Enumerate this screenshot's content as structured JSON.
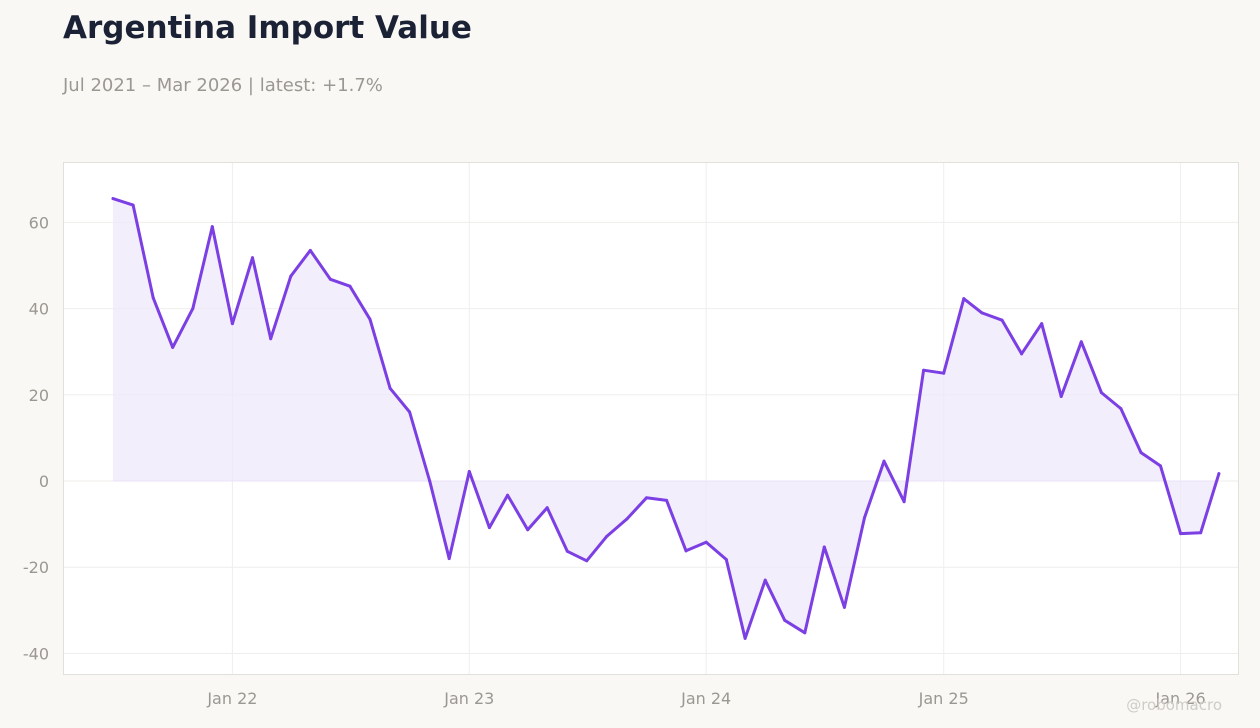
{
  "header": {
    "title": "Argentina Import Value",
    "subtitle": "Jul 2021 – Mar 2026 | latest: +1.7%"
  },
  "watermark": "@robomacro",
  "colors": {
    "line": "#7b3fe4",
    "fill": "#efe8fb",
    "background": "#f9f8f5",
    "plot_background": "#ffffff",
    "grid": "#f0eeeb",
    "zero_line": "#e9e1f8"
  },
  "chart_data": {
    "type": "area",
    "title": "Argentina Import Value",
    "subtitle": "Jul 2021 – Mar 2026 | latest: +1.7%",
    "xlabel": "",
    "ylabel": "",
    "ylim": [
      -45,
      74
    ],
    "xlim": [
      "2021-04-15",
      "2026-04-01"
    ],
    "grid": true,
    "legend": "none",
    "yticks": [
      -40,
      -20,
      0,
      20,
      40,
      60
    ],
    "xticks": [
      {
        "date": "2022-01-01",
        "label": "Jan 22"
      },
      {
        "date": "2023-01-01",
        "label": "Jan 23"
      },
      {
        "date": "2024-01-01",
        "label": "Jan 24"
      },
      {
        "date": "2025-01-01",
        "label": "Jan 25"
      },
      {
        "date": "2026-01-01",
        "label": "Jan 26"
      }
    ],
    "x": [
      "2021-07-01",
      "2021-08-01",
      "2021-09-01",
      "2021-10-01",
      "2021-11-01",
      "2021-12-01",
      "2022-01-01",
      "2022-02-01",
      "2022-03-01",
      "2022-04-01",
      "2022-05-01",
      "2022-06-01",
      "2022-07-01",
      "2022-08-01",
      "2022-09-01",
      "2022-10-01",
      "2022-11-01",
      "2022-12-01",
      "2023-01-01",
      "2023-02-01",
      "2023-03-01",
      "2023-04-01",
      "2023-05-01",
      "2023-06-01",
      "2023-07-01",
      "2023-08-01",
      "2023-09-01",
      "2023-10-01",
      "2023-11-01",
      "2023-12-01",
      "2024-01-01",
      "2024-02-01",
      "2024-03-01",
      "2024-04-01",
      "2024-05-01",
      "2024-06-01",
      "2024-07-01",
      "2024-08-01",
      "2024-09-01",
      "2024-10-01",
      "2024-11-01",
      "2024-12-01",
      "2025-01-01",
      "2025-02-01",
      "2025-03-01",
      "2025-04-01",
      "2025-05-01",
      "2025-06-01",
      "2025-07-01",
      "2025-08-01",
      "2025-09-01",
      "2025-10-01",
      "2025-11-01",
      "2025-12-01",
      "2026-01-01",
      "2026-02-01",
      "2026-03-01"
    ],
    "series": [
      {
        "values": [
          65.5,
          64.0,
          42.5,
          31.0,
          40.0,
          59.0,
          36.5,
          51.8,
          33.0,
          47.5,
          53.5,
          46.8,
          45.2,
          37.5,
          21.5,
          16.0,
          0.0,
          -18.0,
          2.2,
          -10.8,
          -3.3,
          -11.3,
          -6.2,
          -16.3,
          -18.5,
          -12.8,
          -8.8,
          -3.9,
          -4.5,
          -16.2,
          -14.2,
          -18.2,
          -36.5,
          -23.0,
          -32.3,
          -35.2,
          -15.3,
          -29.3,
          -8.5,
          4.6,
          -4.8,
          25.7,
          25.0,
          42.3,
          39.0,
          37.3,
          29.5,
          36.5,
          19.6,
          32.3,
          20.5,
          16.8,
          6.6,
          3.5,
          -12.2,
          -12.0,
          1.7
        ]
      }
    ]
  }
}
